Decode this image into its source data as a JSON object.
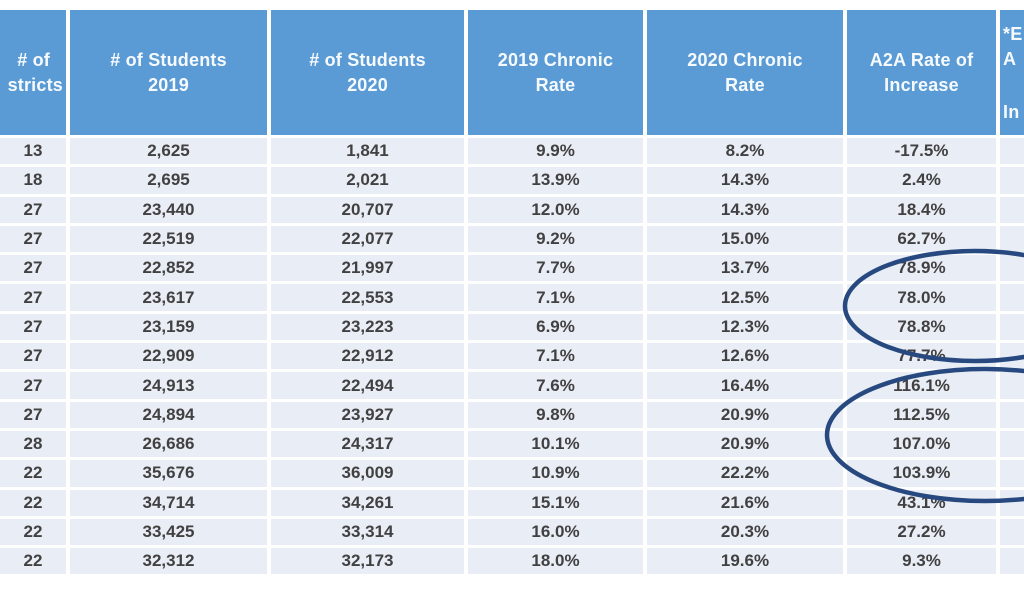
{
  "table": {
    "headers": [
      {
        "id": "districts",
        "lines": [
          "# of",
          "stricts"
        ]
      },
      {
        "id": "students-2019",
        "lines": [
          "# of Students",
          "2019"
        ]
      },
      {
        "id": "students-2020",
        "lines": [
          "# of Students",
          "2020"
        ]
      },
      {
        "id": "chronic-2019",
        "lines": [
          "2019 Chronic",
          "Rate"
        ]
      },
      {
        "id": "chronic-2020",
        "lines": [
          "2020 Chronic",
          "Rate"
        ]
      },
      {
        "id": "a2a-increase",
        "lines": [
          "A2A Rate of",
          "Increase"
        ]
      },
      {
        "id": "cut-right",
        "lines": [
          "*E",
          "A",
          "In"
        ]
      }
    ]
  },
  "chart_data": {
    "type": "table",
    "title": "",
    "columns": [
      "# of stricts",
      "# of Students 2019",
      "# of Students 2020",
      "2019 Chronic Rate",
      "2020 Chronic Rate",
      "A2A Rate of Increase",
      "*E A In"
    ],
    "rows": [
      [
        "13",
        "2,625",
        "1,841",
        "9.9%",
        "8.2%",
        "-17.5%"
      ],
      [
        "18",
        "2,695",
        "2,021",
        "13.9%",
        "14.3%",
        "2.4%"
      ],
      [
        "27",
        "23,440",
        "20,707",
        "12.0%",
        "14.3%",
        "18.4%"
      ],
      [
        "27",
        "22,519",
        "22,077",
        "9.2%",
        "15.0%",
        "62.7%"
      ],
      [
        "27",
        "22,852",
        "21,997",
        "7.7%",
        "13.7%",
        "78.9%"
      ],
      [
        "27",
        "23,617",
        "22,553",
        "7.1%",
        "12.5%",
        "78.0%"
      ],
      [
        "27",
        "23,159",
        "23,223",
        "6.9%",
        "12.3%",
        "78.8%"
      ],
      [
        "27",
        "22,909",
        "22,912",
        "7.1%",
        "12.6%",
        "77.7%"
      ],
      [
        "27",
        "24,913",
        "22,494",
        "7.6%",
        "16.4%",
        "116.1%"
      ],
      [
        "27",
        "24,894",
        "23,927",
        "9.8%",
        "20.9%",
        "112.5%"
      ],
      [
        "28",
        "26,686",
        "24,317",
        "10.1%",
        "20.9%",
        "107.0%"
      ],
      [
        "22",
        "35,676",
        "36,009",
        "10.9%",
        "22.2%",
        "103.9%"
      ],
      [
        "22",
        "34,714",
        "34,261",
        "15.1%",
        "21.6%",
        "43.1%"
      ],
      [
        "22",
        "33,425",
        "33,314",
        "16.0%",
        "20.3%",
        "27.2%"
      ],
      [
        "22",
        "32,312",
        "32,173",
        "18.0%",
        "19.6%",
        "9.3%"
      ]
    ]
  },
  "annotations": {
    "ellipse_color": "#27497F",
    "circled_groups": [
      {
        "column": "A2A Rate of Increase",
        "values": [
          "78.9%",
          "78.0%",
          "78.8%"
        ]
      },
      {
        "column": "A2A Rate of Increase",
        "values": [
          "116.1%",
          "112.5%",
          "107.0%",
          "103.9%"
        ]
      }
    ]
  },
  "colors": {
    "header_bg": "#5B9BD5",
    "header_text": "#FFFFFF",
    "row_bg": "#E9EDF6",
    "cell_text": "#414141",
    "separator": "#FFFFFF"
  }
}
